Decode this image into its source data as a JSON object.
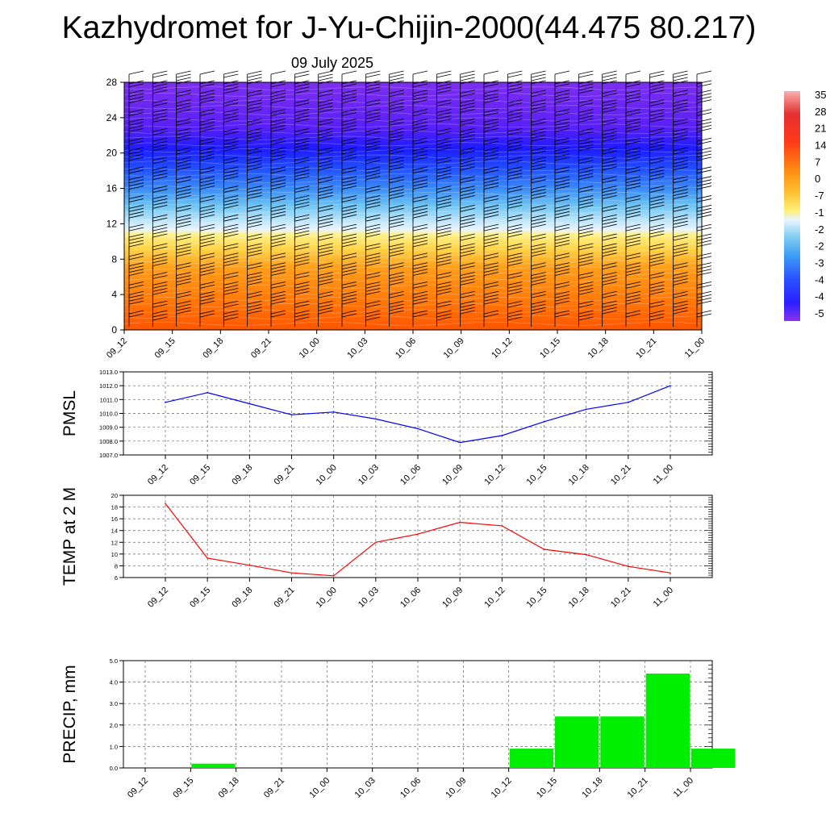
{
  "header": {
    "title": "Kazhydromet for J-Yu-Chijin-2000(44.475 80.217)",
    "date": "09 July 2025"
  },
  "chart_data": [
    {
      "type": "heatmap",
      "title": "",
      "x_labels": [
        "09_12",
        "09_15",
        "09_18",
        "09_21",
        "10_00",
        "10_03",
        "10_06",
        "10_09",
        "10_12",
        "10_15",
        "10_18",
        "10_21",
        "11_00"
      ],
      "y_ticks": [
        "0",
        "4",
        "8",
        "12",
        "16",
        "20",
        "24",
        "28"
      ],
      "ylim": [
        0,
        28
      ],
      "colorbar_labels": [
        "35",
        "28",
        "21",
        "14",
        "7",
        "0",
        "-7",
        "-1",
        "-2",
        "-2",
        "-3",
        "-4",
        "-4",
        "-5"
      ],
      "colors": {
        "warm": "#ff6a00",
        "yellow": "#fff07a",
        "light_blue": "#9fd8f5",
        "blue": "#2040ff",
        "purple": "#7a2cf0"
      },
      "notes": "wind barbs overlaid"
    },
    {
      "type": "line",
      "ylabel": "PMSL",
      "x": [
        "09_12",
        "09_15",
        "09_18",
        "09_21",
        "10_00",
        "10_03",
        "10_06",
        "10_09",
        "10_12",
        "10_15",
        "10_18",
        "10_21",
        "11_00"
      ],
      "values": [
        1010.8,
        1011.5,
        1010.7,
        1009.9,
        1010.1,
        1009.6,
        1008.9,
        1007.9,
        1008.4,
        1009.4,
        1010.3,
        1010.8,
        1012.0
      ],
      "y_ticks": [
        "1007.0",
        "1008.0",
        "1009.0",
        "1010.0",
        "1011.0",
        "1012.0",
        "1013.0"
      ],
      "ylim": [
        1007.0,
        1013.0
      ],
      "color": "#0000ff",
      "grid": true
    },
    {
      "type": "line",
      "ylabel": "TEMP at 2 M",
      "x": [
        "09_12",
        "09_15",
        "09_18",
        "09_21",
        "10_00",
        "10_03",
        "10_06",
        "10_09",
        "10_12",
        "10_15",
        "10_18",
        "10_21",
        "11_00"
      ],
      "values": [
        18.6,
        9.3,
        8.1,
        6.8,
        6.3,
        12.0,
        13.4,
        15.4,
        14.8,
        10.8,
        9.9,
        7.9,
        6.8
      ],
      "y_ticks": [
        "6",
        "8",
        "10",
        "12",
        "14",
        "16",
        "18",
        "20"
      ],
      "ylim": [
        6,
        20
      ],
      "color": "#ff0000",
      "grid": true
    },
    {
      "type": "bar",
      "ylabel": "PRECIP, mm",
      "categories": [
        "09_12",
        "09_15",
        "09_18",
        "09_21",
        "10_00",
        "10_03",
        "10_06",
        "10_09",
        "10_12",
        "10_15",
        "10_18",
        "10_21",
        "11_00"
      ],
      "values": [
        0,
        0.2,
        0,
        0,
        0,
        0,
        0,
        0,
        0.9,
        2.4,
        2.4,
        4.4,
        0.9
      ],
      "y_ticks": [
        "0.0",
        "1.0",
        "2.0",
        "3.0",
        "4.0",
        "5.0"
      ],
      "ylim": [
        0,
        5
      ],
      "color": "#00ee00",
      "grid": true
    }
  ]
}
